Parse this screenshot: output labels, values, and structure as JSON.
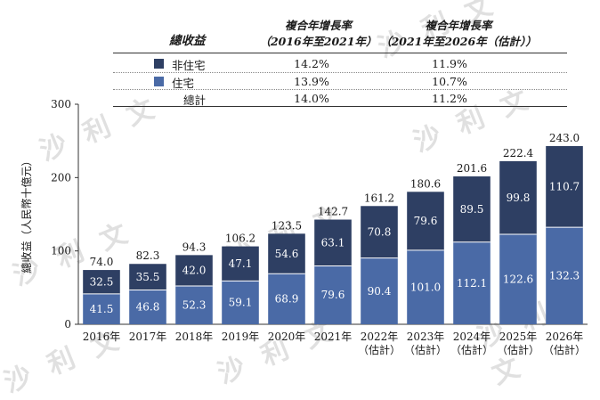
{
  "table": {
    "header": {
      "col0": "總收益",
      "col1_line1": "複合年增長率",
      "col1_line2": "（2016年至2021年）",
      "col2_line1": "複合年增長率",
      "col2_line2": "（2021年至2026年（估計））"
    },
    "rows": [
      {
        "label": "非住宅",
        "cagr1": "14.2%",
        "cagr2": "11.9%",
        "color": "#2e3f63"
      },
      {
        "label": "住宅",
        "cagr1": "13.9%",
        "cagr2": "10.7%",
        "color": "#4a6aa6"
      },
      {
        "label": "總計",
        "cagr1": "14.0%",
        "cagr2": "11.2%"
      }
    ]
  },
  "watermark": "沙 利 文",
  "chart_data": {
    "type": "bar",
    "stacked": true,
    "ylabel": "總收益（人民幣十億元）",
    "ylim": [
      0,
      300
    ],
    "yticks": [
      "0",
      "100",
      "200",
      "300"
    ],
    "categories": [
      [
        "2016年"
      ],
      [
        "2017年"
      ],
      [
        "2018年"
      ],
      [
        "2019年"
      ],
      [
        "2020年"
      ],
      [
        "2021年"
      ],
      [
        "2022年",
        "（估計）"
      ],
      [
        "2023年",
        "（估計）"
      ],
      [
        "2024年",
        "（估計）"
      ],
      [
        "2025年",
        "（估計）"
      ],
      [
        "2026年",
        "（估計）"
      ]
    ],
    "series": [
      {
        "name": "住宅",
        "color": "#4a6aa6",
        "values": [
          41.5,
          46.8,
          52.3,
          59.1,
          68.9,
          79.6,
          90.4,
          101.0,
          112.1,
          122.6,
          132.3
        ],
        "labels": [
          "41.5",
          "46.8",
          "52.3",
          "59.1",
          "68.9",
          "79.6",
          "90.4",
          "101.0",
          "112.1",
          "122.6",
          "132.3"
        ]
      },
      {
        "name": "非住宅",
        "color": "#2e3f63",
        "values": [
          32.5,
          35.5,
          42.0,
          47.1,
          54.6,
          63.1,
          70.8,
          79.6,
          89.5,
          99.8,
          110.7
        ],
        "labels": [
          "32.5",
          "35.5",
          "42.0",
          "47.1",
          "54.6",
          "63.1",
          "70.8",
          "79.6",
          "89.5",
          "99.8",
          "110.7"
        ]
      }
    ],
    "totals": [
      74.0,
      82.3,
      94.3,
      106.2,
      123.5,
      142.7,
      161.2,
      180.6,
      201.6,
      222.4,
      243.0
    ],
    "total_labels": [
      "74.0",
      "82.3",
      "94.3",
      "106.2",
      "123.5",
      "142.7",
      "161.2",
      "180.6",
      "201.6",
      "222.4",
      "243.0"
    ]
  }
}
